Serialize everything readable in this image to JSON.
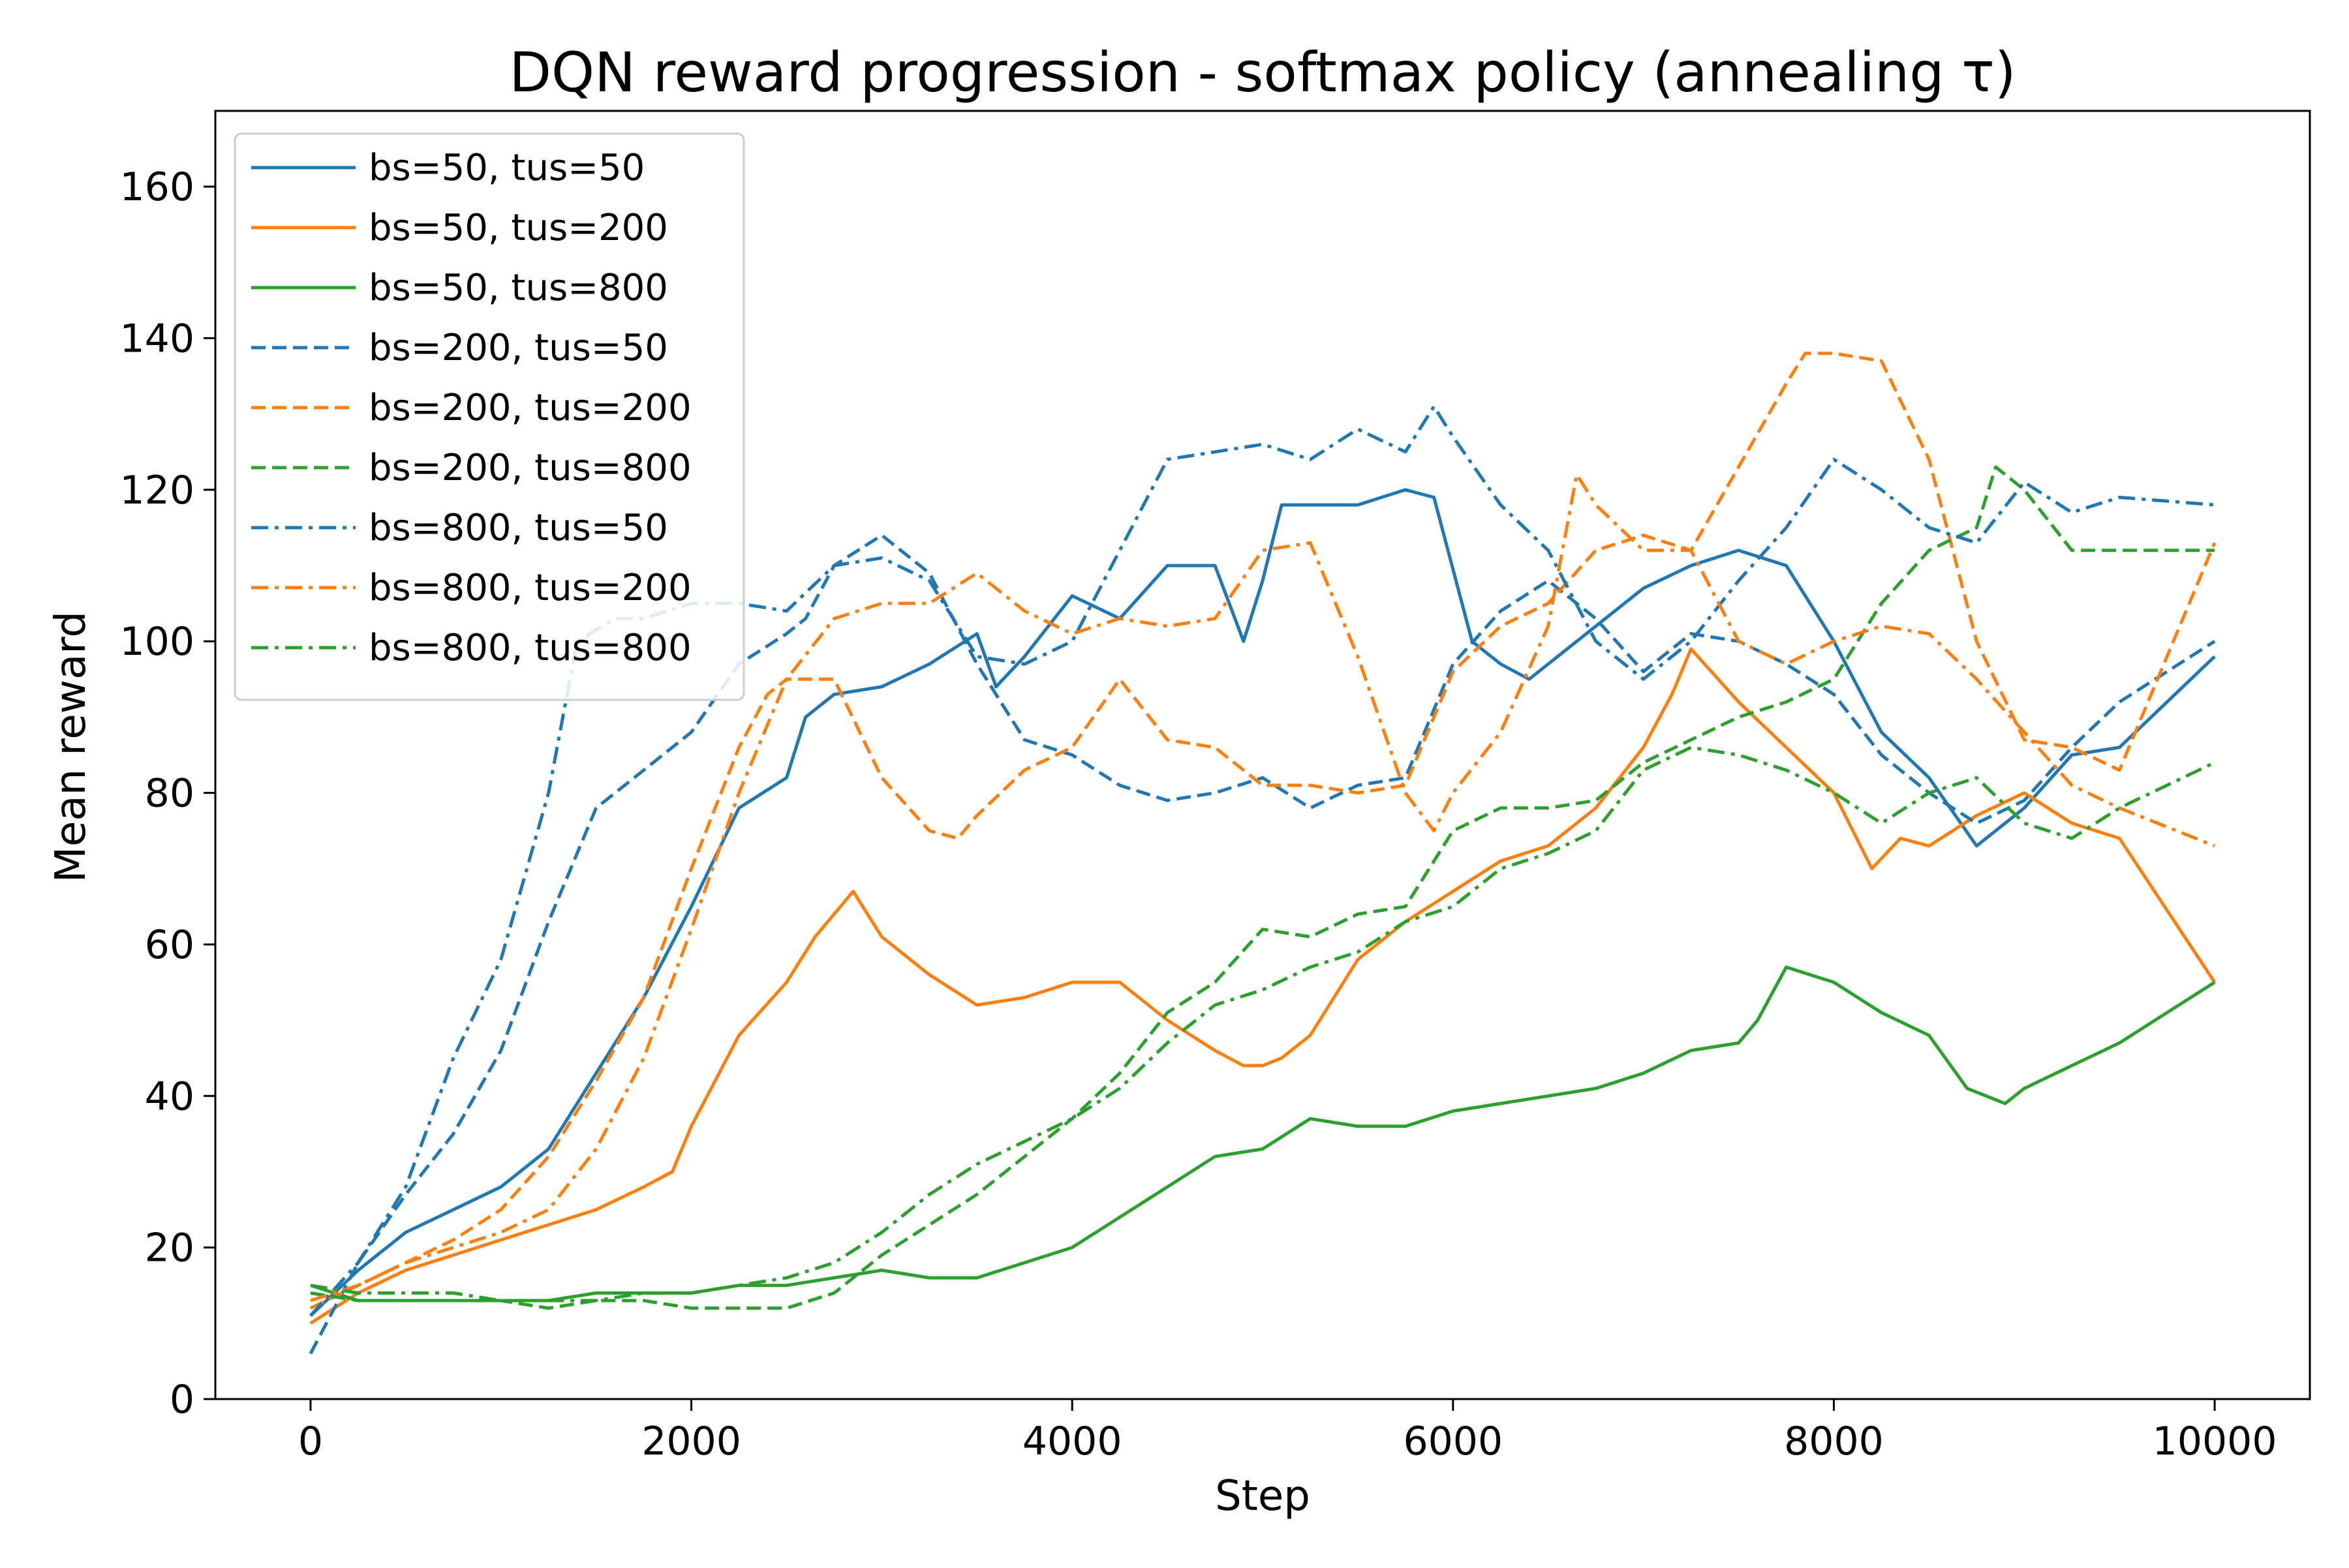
{
  "chart_data": {
    "type": "line",
    "title": "DQN reward progression - softmax policy (annealing τ)",
    "xlabel": "Step",
    "ylabel": "Mean reward",
    "xlim": [
      -500,
      10500
    ],
    "ylim": [
      0,
      170
    ],
    "xticks": [
      0,
      2000,
      4000,
      6000,
      8000,
      10000
    ],
    "yticks": [
      0,
      20,
      40,
      60,
      80,
      100,
      120,
      140,
      160
    ],
    "grid": false,
    "legend_position": "top-left",
    "series": [
      {
        "name": "bs=50, tus=50",
        "color": "#1f77b4",
        "dash": "solid",
        "x": [
          0,
          250,
          500,
          750,
          1000,
          1250,
          1500,
          1750,
          2000,
          2250,
          2500,
          2600,
          2750,
          3000,
          3250,
          3500,
          3600,
          3750,
          4000,
          4250,
          4500,
          4750,
          4900,
          5000,
          5100,
          5250,
          5500,
          5750,
          5900,
          6100,
          6250,
          6400,
          6500,
          6750,
          7000,
          7250,
          7500,
          7750,
          8000,
          8250,
          8500,
          8750,
          9000,
          9250,
          9500,
          10000
        ],
        "y": [
          11,
          17,
          22,
          25,
          28,
          33,
          43,
          53,
          65,
          78,
          82,
          90,
          93,
          94,
          97,
          101,
          94,
          98,
          106,
          103,
          110,
          110,
          100,
          108,
          118,
          118,
          118,
          120,
          119,
          100,
          97,
          95,
          97,
          102,
          107,
          110,
          112,
          110,
          100,
          88,
          82,
          73,
          78,
          85,
          86,
          98
        ]
      },
      {
        "name": "bs=50, tus=200",
        "color": "#ff7f0e",
        "dash": "solid",
        "x": [
          0,
          250,
          500,
          750,
          1000,
          1250,
          1500,
          1750,
          1900,
          2000,
          2250,
          2500,
          2650,
          2850,
          3000,
          3250,
          3500,
          3750,
          4000,
          4250,
          4500,
          4750,
          4900,
          5000,
          5100,
          5250,
          5500,
          5750,
          6000,
          6250,
          6500,
          6750,
          7000,
          7150,
          7250,
          7500,
          7750,
          8000,
          8200,
          8350,
          8500,
          8750,
          9000,
          9250,
          9500,
          10000
        ],
        "y": [
          10,
          14,
          17,
          19,
          21,
          23,
          25,
          28,
          30,
          36,
          48,
          55,
          61,
          67,
          61,
          56,
          52,
          53,
          55,
          55,
          50,
          46,
          44,
          44,
          45,
          48,
          58,
          63,
          67,
          71,
          73,
          78,
          86,
          93,
          99,
          92,
          86,
          80,
          70,
          74,
          73,
          77,
          80,
          76,
          74,
          55
        ]
      },
      {
        "name": "bs=50, tus=800",
        "color": "#2ca02c",
        "dash": "solid",
        "x": [
          0,
          250,
          500,
          750,
          1000,
          1250,
          1500,
          1750,
          2000,
          2250,
          2500,
          2750,
          3000,
          3250,
          3500,
          3750,
          4000,
          4250,
          4500,
          4750,
          5000,
          5250,
          5500,
          5750,
          6000,
          6250,
          6500,
          6750,
          7000,
          7250,
          7500,
          7600,
          7750,
          8000,
          8250,
          8500,
          8700,
          8900,
          9000,
          9250,
          9500,
          10000
        ],
        "y": [
          15,
          13,
          13,
          13,
          13,
          13,
          14,
          14,
          14,
          15,
          15,
          16,
          17,
          16,
          16,
          18,
          20,
          24,
          28,
          32,
          33,
          37,
          36,
          36,
          38,
          39,
          40,
          41,
          43,
          46,
          47,
          50,
          57,
          55,
          51,
          48,
          41,
          39,
          41,
          44,
          47,
          55
        ]
      },
      {
        "name": "bs=200, tus=50",
        "color": "#1f77b4",
        "dash": "dashed",
        "x": [
          0,
          250,
          500,
          750,
          1000,
          1250,
          1500,
          1750,
          2000,
          2250,
          2500,
          2600,
          2750,
          3000,
          3250,
          3500,
          3750,
          4000,
          4250,
          4500,
          4750,
          5000,
          5250,
          5500,
          5750,
          6000,
          6250,
          6500,
          6750,
          7000,
          7250,
          7500,
          7750,
          8000,
          8250,
          8500,
          8750,
          9000,
          9250,
          9500,
          10000
        ],
        "y": [
          6,
          18,
          27,
          35,
          46,
          63,
          78,
          83,
          88,
          97,
          101,
          103,
          110,
          114,
          109,
          97,
          87,
          85,
          81,
          79,
          80,
          82,
          78,
          81,
          82,
          97,
          104,
          108,
          103,
          96,
          101,
          100,
          97,
          93,
          85,
          80,
          76,
          79,
          86,
          92,
          100
        ]
      },
      {
        "name": "bs=200, tus=200",
        "color": "#ff7f0e",
        "dash": "dashed",
        "x": [
          0,
          250,
          500,
          750,
          1000,
          1250,
          1500,
          1750,
          2000,
          2250,
          2400,
          2500,
          2750,
          3000,
          3250,
          3400,
          3500,
          3750,
          4000,
          4250,
          4500,
          4750,
          5000,
          5250,
          5500,
          5750,
          6000,
          6250,
          6500,
          6750,
          7000,
          7250,
          7500,
          7750,
          7850,
          8000,
          8250,
          8500,
          8750,
          9000,
          9250,
          9500,
          10000
        ],
        "y": [
          12,
          15,
          18,
          21,
          25,
          32,
          42,
          53,
          70,
          86,
          93,
          95,
          95,
          82,
          75,
          74,
          77,
          83,
          86,
          95,
          87,
          86,
          81,
          81,
          80,
          81,
          96,
          102,
          105,
          112,
          114,
          112,
          123,
          134,
          138,
          138,
          137,
          124,
          100,
          87,
          86,
          83,
          113
        ]
      },
      {
        "name": "bs=200, tus=800",
        "color": "#2ca02c",
        "dash": "dashed",
        "x": [
          0,
          250,
          500,
          750,
          1000,
          1250,
          1500,
          1750,
          2000,
          2250,
          2500,
          2750,
          3000,
          3250,
          3500,
          3750,
          4000,
          4250,
          4500,
          4750,
          5000,
          5250,
          5500,
          5750,
          6000,
          6250,
          6500,
          6750,
          7000,
          7250,
          7500,
          7750,
          8000,
          8250,
          8500,
          8750,
          8850,
          9000,
          9250,
          9500,
          10000
        ],
        "y": [
          14,
          13,
          13,
          13,
          13,
          12,
          13,
          13,
          12,
          12,
          12,
          14,
          19,
          23,
          27,
          32,
          37,
          43,
          51,
          55,
          62,
          61,
          64,
          65,
          75,
          78,
          78,
          79,
          84,
          87,
          90,
          92,
          95,
          105,
          112,
          115,
          123,
          120,
          112,
          112,
          112
        ]
      },
      {
        "name": "bs=800, tus=50",
        "color": "#1f77b4",
        "dash": "dashdot",
        "x": [
          0,
          250,
          500,
          750,
          1000,
          1250,
          1400,
          1600,
          1750,
          2000,
          2250,
          2500,
          2750,
          3000,
          3250,
          3500,
          3750,
          4000,
          4250,
          4500,
          4750,
          5000,
          5250,
          5500,
          5750,
          5900,
          6000,
          6250,
          6500,
          6750,
          7000,
          7250,
          7500,
          7750,
          8000,
          8250,
          8500,
          8750,
          9000,
          9250,
          9500,
          10000
        ],
        "y": [
          11,
          18,
          28,
          45,
          58,
          80,
          100,
          103,
          103,
          105,
          105,
          104,
          110,
          111,
          108,
          98,
          97,
          100,
          112,
          124,
          125,
          126,
          124,
          128,
          125,
          131,
          127,
          118,
          112,
          100,
          95,
          100,
          108,
          115,
          124,
          120,
          115,
          113,
          121,
          117,
          119,
          118
        ]
      },
      {
        "name": "bs=800, tus=200",
        "color": "#ff7f0e",
        "dash": "dashdot",
        "x": [
          0,
          250,
          500,
          750,
          1000,
          1250,
          1500,
          1750,
          2000,
          2250,
          2500,
          2750,
          3000,
          3250,
          3500,
          3750,
          4000,
          4250,
          4500,
          4750,
          5000,
          5250,
          5500,
          5750,
          5900,
          6000,
          6250,
          6500,
          6650,
          6750,
          7000,
          7250,
          7500,
          7750,
          8000,
          8250,
          8500,
          8750,
          9000,
          9250,
          9500,
          10000
        ],
        "y": [
          13,
          15,
          18,
          20,
          22,
          25,
          33,
          45,
          62,
          80,
          95,
          103,
          105,
          105,
          109,
          104,
          101,
          103,
          102,
          103,
          112,
          113,
          98,
          80,
          75,
          80,
          88,
          102,
          122,
          118,
          112,
          112,
          100,
          97,
          100,
          102,
          101,
          95,
          88,
          81,
          78,
          73
        ]
      },
      {
        "name": "bs=800, tus=800",
        "color": "#2ca02c",
        "dash": "dashdot",
        "x": [
          0,
          250,
          500,
          750,
          1000,
          1250,
          1500,
          1750,
          2000,
          2250,
          2500,
          2750,
          3000,
          3250,
          3500,
          3750,
          4000,
          4250,
          4500,
          4750,
          5000,
          5250,
          5500,
          5750,
          6000,
          6250,
          6500,
          6750,
          7000,
          7250,
          7500,
          7750,
          8000,
          8250,
          8500,
          8750,
          9000,
          9250,
          9500,
          10000
        ],
        "y": [
          15,
          14,
          14,
          14,
          13,
          13,
          13,
          14,
          14,
          15,
          16,
          18,
          22,
          27,
          31,
          34,
          37,
          41,
          47,
          52,
          54,
          57,
          59,
          63,
          65,
          70,
          72,
          75,
          83,
          86,
          85,
          83,
          80,
          76,
          80,
          82,
          76,
          74,
          78,
          84
        ]
      }
    ]
  }
}
